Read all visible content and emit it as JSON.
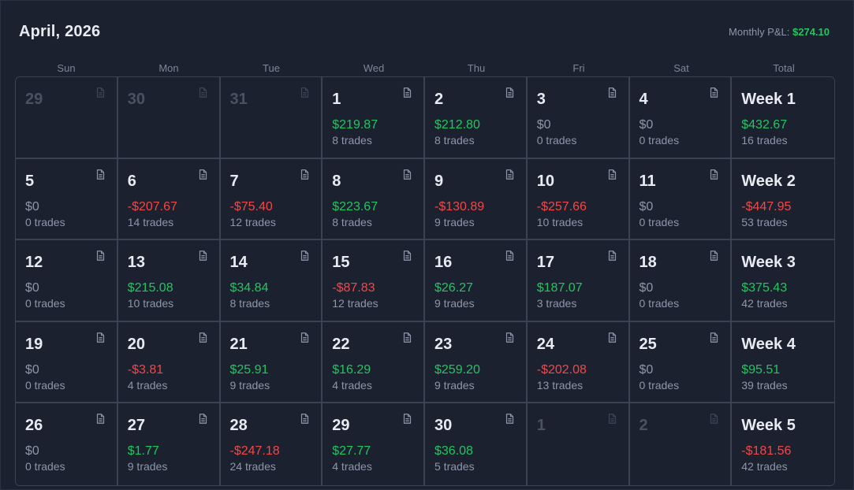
{
  "header": {
    "title": "April, 2026",
    "monthly_label": "Monthly P&L:",
    "monthly_value": "$274.10"
  },
  "weekdays": [
    "Sun",
    "Mon",
    "Tue",
    "Wed",
    "Thu",
    "Fri",
    "Sat",
    "Total"
  ],
  "colors": {
    "positive": "#22c55e",
    "negative": "#f04848",
    "neutral": "#8d96a8"
  },
  "weeks": [
    {
      "days": [
        {
          "day": "29",
          "muted": true
        },
        {
          "day": "30",
          "muted": true
        },
        {
          "day": "31",
          "muted": true
        },
        {
          "day": "1",
          "pnl": "$219.87",
          "trades": "8 trades",
          "sign": "pos"
        },
        {
          "day": "2",
          "pnl": "$212.80",
          "trades": "8 trades",
          "sign": "pos"
        },
        {
          "day": "3",
          "pnl": "$0",
          "trades": "0 trades",
          "sign": "zero"
        },
        {
          "day": "4",
          "pnl": "$0",
          "trades": "0 trades",
          "sign": "zero"
        }
      ],
      "total": {
        "label": "Week 1",
        "pnl": "$432.67",
        "trades": "16 trades",
        "sign": "pos"
      }
    },
    {
      "days": [
        {
          "day": "5",
          "pnl": "$0",
          "trades": "0 trades",
          "sign": "zero"
        },
        {
          "day": "6",
          "pnl": "-$207.67",
          "trades": "14 trades",
          "sign": "neg"
        },
        {
          "day": "7",
          "pnl": "-$75.40",
          "trades": "12 trades",
          "sign": "neg"
        },
        {
          "day": "8",
          "pnl": "$223.67",
          "trades": "8 trades",
          "sign": "pos"
        },
        {
          "day": "9",
          "pnl": "-$130.89",
          "trades": "9 trades",
          "sign": "neg"
        },
        {
          "day": "10",
          "pnl": "-$257.66",
          "trades": "10 trades",
          "sign": "neg"
        },
        {
          "day": "11",
          "pnl": "$0",
          "trades": "0 trades",
          "sign": "zero"
        }
      ],
      "total": {
        "label": "Week 2",
        "pnl": "-$447.95",
        "trades": "53 trades",
        "sign": "neg"
      }
    },
    {
      "days": [
        {
          "day": "12",
          "pnl": "$0",
          "trades": "0 trades",
          "sign": "zero"
        },
        {
          "day": "13",
          "pnl": "$215.08",
          "trades": "10 trades",
          "sign": "pos"
        },
        {
          "day": "14",
          "pnl": "$34.84",
          "trades": "8 trades",
          "sign": "pos"
        },
        {
          "day": "15",
          "pnl": "-$87.83",
          "trades": "12 trades",
          "sign": "neg"
        },
        {
          "day": "16",
          "pnl": "$26.27",
          "trades": "9 trades",
          "sign": "pos"
        },
        {
          "day": "17",
          "pnl": "$187.07",
          "trades": "3 trades",
          "sign": "pos"
        },
        {
          "day": "18",
          "pnl": "$0",
          "trades": "0 trades",
          "sign": "zero"
        }
      ],
      "total": {
        "label": "Week 3",
        "pnl": "$375.43",
        "trades": "42 trades",
        "sign": "pos"
      }
    },
    {
      "days": [
        {
          "day": "19",
          "pnl": "$0",
          "trades": "0 trades",
          "sign": "zero"
        },
        {
          "day": "20",
          "pnl": "-$3.81",
          "trades": "4 trades",
          "sign": "neg"
        },
        {
          "day": "21",
          "pnl": "$25.91",
          "trades": "9 trades",
          "sign": "pos"
        },
        {
          "day": "22",
          "pnl": "$16.29",
          "trades": "4 trades",
          "sign": "pos"
        },
        {
          "day": "23",
          "pnl": "$259.20",
          "trades": "9 trades",
          "sign": "pos"
        },
        {
          "day": "24",
          "pnl": "-$202.08",
          "trades": "13 trades",
          "sign": "neg"
        },
        {
          "day": "25",
          "pnl": "$0",
          "trades": "0 trades",
          "sign": "zero"
        }
      ],
      "total": {
        "label": "Week 4",
        "pnl": "$95.51",
        "trades": "39 trades",
        "sign": "pos"
      }
    },
    {
      "days": [
        {
          "day": "26",
          "pnl": "$0",
          "trades": "0 trades",
          "sign": "zero"
        },
        {
          "day": "27",
          "pnl": "$1.77",
          "trades": "9 trades",
          "sign": "pos"
        },
        {
          "day": "28",
          "pnl": "-$247.18",
          "trades": "24 trades",
          "sign": "neg"
        },
        {
          "day": "29",
          "pnl": "$27.77",
          "trades": "4 trades",
          "sign": "pos"
        },
        {
          "day": "30",
          "pnl": "$36.08",
          "trades": "5 trades",
          "sign": "pos"
        },
        {
          "day": "1",
          "muted": true
        },
        {
          "day": "2",
          "muted": true
        }
      ],
      "total": {
        "label": "Week 5",
        "pnl": "-$181.56",
        "trades": "42 trades",
        "sign": "neg"
      }
    }
  ]
}
